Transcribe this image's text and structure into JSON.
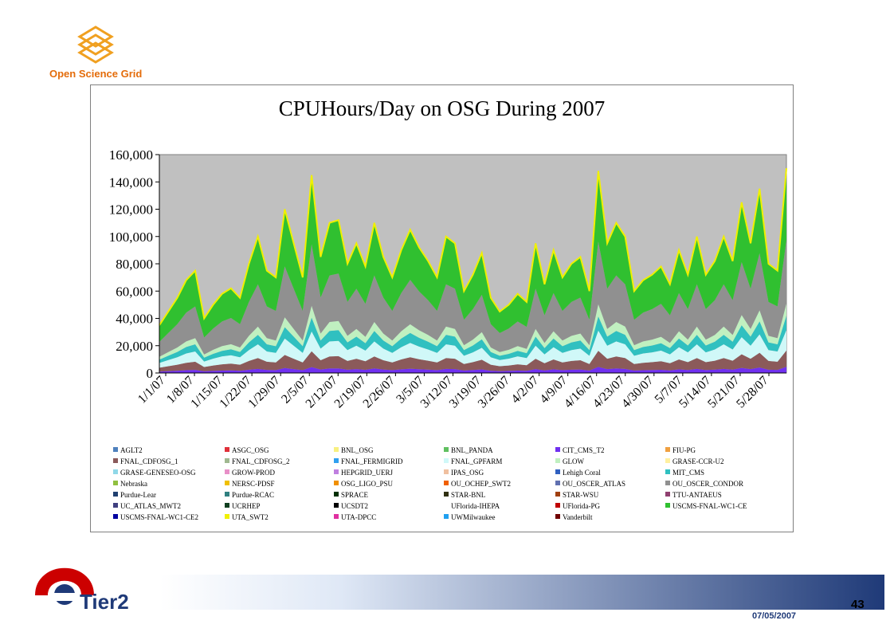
{
  "header": {
    "logo_text": "Open Science Grid"
  },
  "footer": {
    "logo_text": "Tier2",
    "page_number": "43",
    "date": "07/05/2007"
  },
  "colors": {
    "osg_orange": "#e46c0a",
    "plot_background": "#c0c0c0",
    "footer_blue": "#1f3a78"
  },
  "chart_data": {
    "type": "area",
    "title": "CPUHours/Day on OSG During 2007",
    "xlabel": "",
    "ylabel": "",
    "ylim": [
      0,
      160000
    ],
    "yticks": [
      "0",
      "20,000",
      "40,000",
      "60,000",
      "80,000",
      "100,000",
      "120,000",
      "140,000",
      "160,000"
    ],
    "xticks": [
      "1/1/07",
      "1/8/07",
      "1/15/07",
      "1/22/07",
      "1/29/07",
      "2/5/07",
      "2/12/07",
      "2/19/07",
      "2/26/07",
      "3/5/07",
      "3/12/07",
      "3/19/07",
      "3/26/07",
      "4/2/07",
      "4/9/07",
      "4/16/07",
      "4/23/07",
      "4/30/07",
      "5/7/07",
      "5/14/07",
      "5/21/07",
      "5/28/07"
    ],
    "grid": false,
    "legend": "bottom",
    "total_daily": [
      35000,
      45000,
      55000,
      68000,
      75000,
      40000,
      50000,
      58000,
      62000,
      55000,
      80000,
      100000,
      75000,
      70000,
      120000,
      95000,
      70000,
      145000,
      85000,
      110000,
      112000,
      80000,
      95000,
      78000,
      110000,
      85000,
      70000,
      90000,
      105000,
      92000,
      82000,
      70000,
      100000,
      95000,
      60000,
      72000,
      88000,
      55000,
      45000,
      50000,
      58000,
      52000,
      95000,
      65000,
      90000,
      70000,
      80000,
      85000,
      60000,
      148000,
      95000,
      110000,
      100000,
      60000,
      68000,
      72000,
      78000,
      65000,
      90000,
      72000,
      100000,
      72000,
      82000,
      100000,
      82000,
      125000,
      95000,
      135000,
      80000,
      75000,
      150000
    ],
    "series_names": [
      "AGLT2",
      "ASGC_OSG",
      "BNL_OSG",
      "BNL_PANDA",
      "CIT_CMS_T2",
      "FIU-PG",
      "FNAL_CDFOSG_1",
      "FNAL_CDFOSG_2",
      "FNAL_FERMIGRID",
      "FNAL_GPFARM",
      "GLOW",
      "GRASE-CCR-U2",
      "GRASE-GENESEO-OSG",
      "GROW-PROD",
      "HEPGRID_UERJ",
      "IPAS_OSG",
      "Lehigh Coral",
      "MIT_CMS",
      "Nebraska",
      "NERSC-PDSF",
      "OSG_LIGO_PSU",
      "OU_OCHEP_SWT2",
      "OU_OSCER_ATLAS",
      "OU_OSCER_CONDOR",
      "Purdue-Lear",
      "Purdue-RCAC",
      "SPRACE",
      "STAR-BNL",
      "STAR-WSU",
      "TTU-ANTAEUS",
      "UC_ATLAS_MWT2",
      "UCRHEP",
      "UCSDT2",
      "UFlorida-IHEPA",
      "UFlorida-PG",
      "USCMS-FNAL-WC1-CE",
      "USCMS-FNAL-WC1-CE2",
      "UTA_SWT2",
      "UTA-DPCC",
      "UWMilwaukee",
      "Vanderbilt"
    ],
    "series_colors": [
      "#4f81bd",
      "#e0303a",
      "#f8f080",
      "#60c060",
      "#7030f0",
      "#f0a040",
      "#8b5a5a",
      "#a0b890",
      "#30a0f0",
      "#d0f8f8",
      "#c0f0c0",
      "#fff0a0",
      "#90d8e8",
      "#e890c8",
      "#c080e0",
      "#f0c0a0",
      "#3060c0",
      "#30c0c0",
      "#90c040",
      "#f0c000",
      "#f09000",
      "#f06000",
      "#6070b0",
      "#909090",
      "#204070",
      "#308080",
      "#003000",
      "#303010",
      "#a04010",
      "#904070",
      "#404080",
      "#104020",
      "#000000",
      "#ffffff",
      "#c00000",
      "#30c030",
      "#0000a0",
      "#f0f000",
      "#e030a0",
      "#20a0f0",
      "#700000"
    ],
    "approx_shares": {
      "USCMS-FNAL-WC1-CE": 0.35,
      "FNAL_CDFOSG_1": 0.08,
      "FNAL_GPFARM": 0.1,
      "MIT_CMS": 0.07,
      "GLOW": 0.06,
      "CIT_CMS_T2": 0.03,
      "other_sites": 0.31
    }
  }
}
